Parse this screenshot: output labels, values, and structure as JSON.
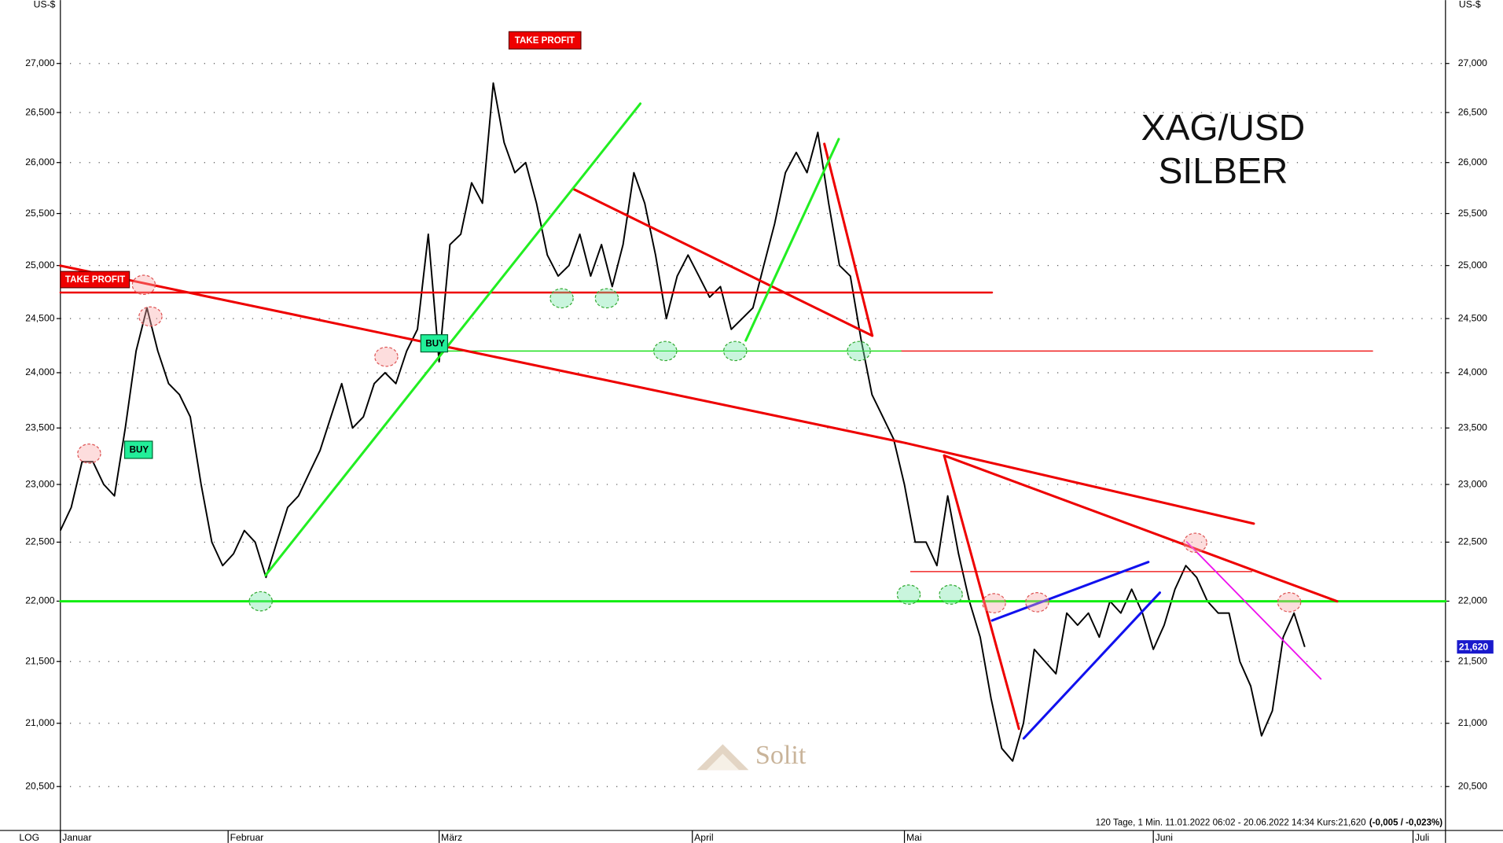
{
  "chart_data": {
    "type": "line",
    "title": "XAG/USD",
    "subtitle": "SILBER",
    "y_unit": "US-$",
    "log": true,
    "scale_label": "LOG",
    "color": "#000000",
    "grid": true,
    "xlim": [
      0,
      128
    ],
    "xticks": [
      {
        "value": 0,
        "label": "Januar"
      },
      {
        "value": 15.5,
        "label": "Februar"
      },
      {
        "value": 35,
        "label": "März"
      },
      {
        "value": 58.4,
        "label": "April"
      },
      {
        "value": 78,
        "label": "Mai"
      },
      {
        "value": 101,
        "label": "Juni"
      },
      {
        "value": 125,
        "label": "Juli"
      }
    ],
    "ylim": [
      20.16,
      27.66
    ],
    "yticks": [
      {
        "value": 20.5,
        "label": "20,500"
      },
      {
        "value": 21,
        "label": "21,000"
      },
      {
        "value": 21.5,
        "label": "21,500"
      },
      {
        "value": 22,
        "label": "22,000"
      },
      {
        "value": 22.5,
        "label": "22,500"
      },
      {
        "value": 23,
        "label": "23,000"
      },
      {
        "value": 23.5,
        "label": "23,500"
      },
      {
        "value": 24,
        "label": "24,000"
      },
      {
        "value": 24.5,
        "label": "24,500"
      },
      {
        "value": 25,
        "label": "25,000"
      },
      {
        "value": 25.5,
        "label": "25,500"
      },
      {
        "value": 26,
        "label": "26,000"
      },
      {
        "value": 26.5,
        "label": "26,500"
      },
      {
        "value": 27,
        "label": "27,000"
      }
    ],
    "values": [
      22.6,
      22.8,
      23.2,
      23.2,
      23.0,
      22.9,
      23.5,
      24.2,
      24.6,
      24.2,
      23.9,
      23.8,
      23.6,
      23.0,
      22.5,
      22.3,
      22.4,
      22.6,
      22.5,
      22.2,
      22.5,
      22.8,
      22.9,
      23.1,
      23.3,
      23.6,
      23.9,
      23.5,
      23.6,
      23.9,
      24.0,
      23.9,
      24.2,
      24.4,
      25.3,
      24.1,
      25.2,
      25.3,
      25.8,
      25.6,
      26.8,
      26.2,
      25.9,
      26.0,
      25.6,
      25.1,
      24.9,
      25.0,
      25.3,
      24.9,
      25.2,
      24.8,
      25.2,
      25.9,
      25.6,
      25.1,
      24.5,
      24.9,
      25.1,
      24.9,
      24.7,
      24.8,
      24.4,
      24.5,
      24.6,
      25.0,
      25.4,
      25.9,
      26.1,
      25.9,
      26.3,
      25.6,
      25.0,
      24.9,
      24.3,
      23.8,
      23.6,
      23.4,
      23.0,
      22.5,
      22.5,
      22.3,
      22.9,
      22.4,
      22.0,
      21.7,
      21.2,
      20.8,
      20.7,
      21.0,
      21.6,
      21.5,
      21.4,
      21.9,
      21.8,
      21.9,
      21.7,
      22.0,
      21.9,
      22.1,
      21.9,
      21.6,
      21.8,
      22.1,
      22.3,
      22.2,
      22.0,
      21.9,
      21.9,
      21.5,
      21.3,
      20.9,
      21.1,
      21.7,
      21.9,
      21.62
    ],
    "last_price": {
      "value": 21.62,
      "label": "21,620"
    },
    "annotations": [
      "TAKE PROFIT",
      "TAKE PROFIT",
      "BUY",
      "BUY"
    ],
    "watermark": "Solit",
    "footer": "120 Tage, 1 Min. 11.01.2022 06:02 - 20.06.2022 14:34  Kurs:21,620",
    "footer_change": "(-0,005 / -0,023%)"
  }
}
